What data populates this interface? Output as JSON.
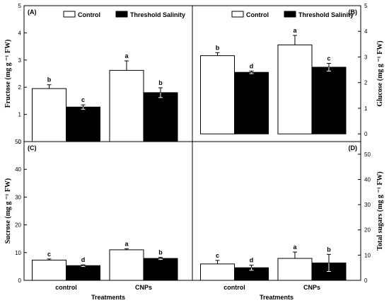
{
  "chart_data": [
    {
      "type": "bar",
      "panel_label": "(A)",
      "ylabel": "Fructose  (mg g ⁻¹ FW)",
      "y_axis_side": "left",
      "ylim": [
        0,
        5
      ],
      "yticks": [
        0,
        1,
        2,
        3,
        4,
        5
      ],
      "categories": [
        "control",
        "CNPs"
      ],
      "legend": true,
      "series": [
        {
          "name": "Control",
          "values": [
            1.95,
            2.62
          ],
          "errors": [
            0.14,
            0.35
          ],
          "letters": [
            "b",
            "a"
          ]
        },
        {
          "name": "Threshold Salinity",
          "values": [
            1.27,
            1.8
          ],
          "errors": [
            0.08,
            0.18
          ],
          "letters": [
            "c",
            "b"
          ]
        }
      ]
    },
    {
      "type": "bar",
      "panel_label": "(B)",
      "ylabel": "Glucose  (mg g ⁻¹ FW)",
      "y_axis_side": "right",
      "ylim": [
        -0.3,
        5
      ],
      "yticks": [
        0,
        1,
        2,
        3,
        4,
        5
      ],
      "categories": [
        "control",
        "CNPs"
      ],
      "legend": true,
      "series": [
        {
          "name": "Control",
          "values": [
            3.05,
            3.47
          ],
          "errors": [
            0.12,
            0.37
          ],
          "letters": [
            "b",
            "a"
          ]
        },
        {
          "name": "Threshold Salinity",
          "values": [
            2.4,
            2.6
          ],
          "errors": [
            0.05,
            0.15
          ],
          "letters": [
            "d",
            "c"
          ]
        }
      ]
    },
    {
      "type": "bar",
      "panel_label": "(C)",
      "ylabel": "Sucrose  (mg g ⁻¹ FW)",
      "y_axis_side": "left",
      "ylim": [
        0,
        50
      ],
      "yticks": [
        0,
        10,
        20,
        30,
        40,
        50
      ],
      "categories": [
        "control",
        "CNPs"
      ],
      "xlabel": "Treatments",
      "legend": false,
      "series": [
        {
          "name": "Control",
          "values": [
            7.3,
            11.0
          ],
          "errors": [
            0.4,
            0.4
          ],
          "letters": [
            "c",
            "a"
          ]
        },
        {
          "name": "Threshold Salinity",
          "values": [
            5.3,
            7.9
          ],
          "errors": [
            0.3,
            0.4
          ],
          "letters": [
            "d",
            "b"
          ]
        }
      ]
    },
    {
      "type": "bar",
      "panel_label": "(D)",
      "ylabel": "Total sugars  (mg g ⁻¹ FW)",
      "y_axis_side": "right",
      "ylim": [
        0,
        55
      ],
      "yticks": [
        0,
        10,
        20,
        30,
        40,
        50
      ],
      "categories": [
        "control",
        "CNPs"
      ],
      "xlabel": "Treatments",
      "legend": false,
      "series": [
        {
          "name": "Control",
          "values": [
            6.5,
            8.7
          ],
          "errors": [
            1.4,
            2.5
          ],
          "letters": [
            "c",
            "a"
          ]
        },
        {
          "name": "Threshold Salinity",
          "values": [
            5.0,
            6.9
          ],
          "errors": [
            1.0,
            3.4
          ],
          "letters": [
            "d",
            "b"
          ]
        }
      ]
    }
  ]
}
